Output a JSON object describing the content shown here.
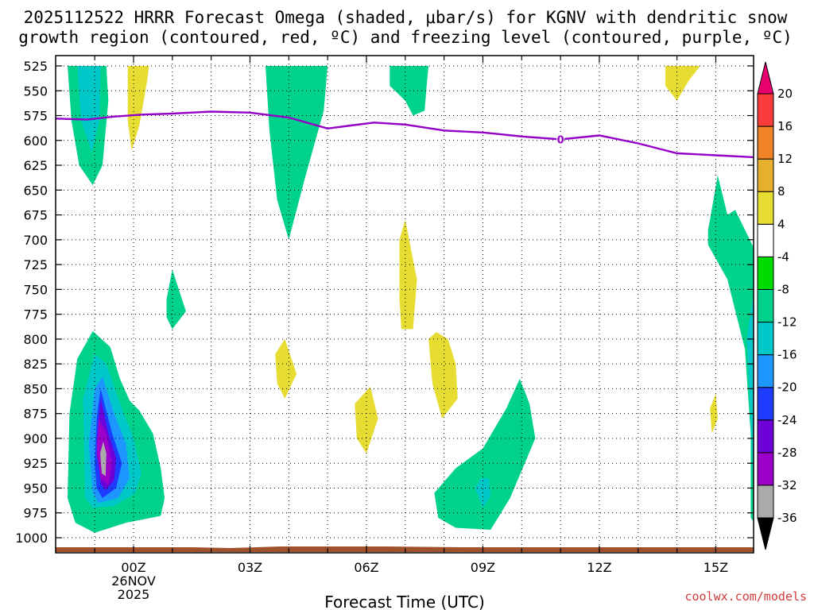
{
  "chart_data": {
    "type": "heatmap",
    "title_line1": "2025112522 HRRR Forecast Omega (shaded, μbar/s) for KGNV with dendritic snow",
    "title_line2": "growth region (contoured, red, ºC) and freezing level (contoured, purple, ºC)",
    "xlabel": "Forecast Time (UTC)",
    "credit": "coolwx.com/models",
    "x_range_hours": [
      -2.0,
      16.0
    ],
    "y_range_mb": [
      525,
      1000
    ],
    "y_ticks": [
      "525",
      "550",
      "575",
      "600",
      "625",
      "650",
      "675",
      "700",
      "725",
      "750",
      "775",
      "800",
      "825",
      "850",
      "875",
      "900",
      "925",
      "950",
      "975",
      "1000"
    ],
    "x_ticks": [
      {
        "hour": 0,
        "label": "00Z",
        "sub1": "26NOV",
        "sub2": "2025"
      },
      {
        "hour": 3,
        "label": "03Z"
      },
      {
        "hour": 6,
        "label": "06Z"
      },
      {
        "hour": 9,
        "label": "09Z"
      },
      {
        "hour": 12,
        "label": "12Z"
      },
      {
        "hour": 15,
        "label": "15Z"
      }
    ],
    "colorbar": {
      "bounds": [
        -36,
        -32,
        -28,
        -24,
        -20,
        -16,
        -12,
        -8,
        -4,
        4,
        8,
        12,
        16,
        20
      ],
      "labels": [
        "20",
        "16",
        "12",
        "8",
        "4",
        "-4",
        "-8",
        "-12",
        "-16",
        "-20",
        "-24",
        "-28",
        "-32",
        "-36"
      ],
      "below_color": "#000000",
      "above_color": "#e8006e",
      "colors": [
        "#aaaaaa",
        "#9c00c8",
        "#6e00d8",
        "#1e3cff",
        "#1e96ff",
        "#00c8c8",
        "#00d28c",
        "#00dc00",
        "#ffffff",
        "#e6dc32",
        "#e6af2d",
        "#f08228",
        "#fa3c3c"
      ]
    },
    "freezing_level": {
      "label": "0",
      "label_hour": 11.0,
      "points": [
        [
          -2.0,
          578
        ],
        [
          -1.2,
          579
        ],
        [
          -0.5,
          576
        ],
        [
          0.2,
          574
        ],
        [
          1.0,
          573
        ],
        [
          2.0,
          571
        ],
        [
          3.0,
          572
        ],
        [
          4.0,
          577
        ],
        [
          5.0,
          588
        ],
        [
          5.6,
          585
        ],
        [
          6.2,
          582
        ],
        [
          7.0,
          584
        ],
        [
          8.0,
          590
        ],
        [
          9.0,
          592
        ],
        [
          10.0,
          596
        ],
        [
          11.0,
          599
        ],
        [
          12.0,
          595
        ],
        [
          13.0,
          603
        ],
        [
          14.0,
          613
        ],
        [
          15.0,
          615
        ],
        [
          16.0,
          617
        ]
      ]
    },
    "omega_regions": [
      {
        "value": -10,
        "points": [
          [
            -1.7,
            525
          ],
          [
            -1.6,
            580
          ],
          [
            -1.4,
            625
          ],
          [
            -1.05,
            645
          ],
          [
            -0.8,
            625
          ],
          [
            -0.65,
            560
          ],
          [
            -0.7,
            525
          ]
        ]
      },
      {
        "value": -14,
        "points": [
          [
            -1.45,
            525
          ],
          [
            -1.35,
            580
          ],
          [
            -1.08,
            612
          ],
          [
            -0.88,
            580
          ],
          [
            -0.85,
            525
          ]
        ]
      },
      {
        "value": 6,
        "points": [
          [
            -0.15,
            525
          ],
          [
            -0.15,
            580
          ],
          [
            -0.05,
            610
          ],
          [
            0.15,
            585
          ],
          [
            0.35,
            540
          ],
          [
            0.4,
            525
          ]
        ]
      },
      {
        "value": -10,
        "points": [
          [
            3.4,
            525
          ],
          [
            3.5,
            590
          ],
          [
            3.7,
            660
          ],
          [
            4.0,
            700
          ],
          [
            4.4,
            640
          ],
          [
            4.9,
            570
          ],
          [
            5.0,
            525
          ]
        ]
      },
      {
        "value": -12,
        "points": [
          [
            3.72,
            525
          ],
          [
            3.72,
            600
          ],
          [
            4.0,
            638
          ],
          [
            4.25,
            590
          ],
          [
            4.25,
            525
          ]
        ]
      },
      {
        "value": -10,
        "points": [
          [
            7.6,
            525
          ],
          [
            7.55,
            545
          ],
          [
            7.5,
            570
          ],
          [
            7.2,
            575
          ],
          [
            7.0,
            560
          ],
          [
            6.6,
            545
          ],
          [
            6.6,
            525
          ]
        ]
      },
      {
        "value": 6,
        "points": [
          [
            13.7,
            525
          ],
          [
            13.7,
            545
          ],
          [
            14.0,
            560
          ],
          [
            14.3,
            540
          ],
          [
            14.6,
            525
          ]
        ]
      },
      {
        "value": 6,
        "points": [
          [
            6.85,
            700
          ],
          [
            6.85,
            760
          ],
          [
            6.9,
            790
          ],
          [
            7.2,
            790
          ],
          [
            7.3,
            740
          ],
          [
            7.0,
            680
          ]
        ]
      },
      {
        "value": -10,
        "points": [
          [
            0.85,
            760
          ],
          [
            0.85,
            778
          ],
          [
            1.0,
            790
          ],
          [
            1.35,
            772
          ],
          [
            1.0,
            730
          ]
        ]
      },
      {
        "value": 6,
        "points": [
          [
            3.65,
            815
          ],
          [
            3.7,
            845
          ],
          [
            3.9,
            860
          ],
          [
            4.2,
            835
          ],
          [
            3.9,
            800
          ]
        ]
      },
      {
        "value": 6,
        "points": [
          [
            5.7,
            865
          ],
          [
            5.75,
            900
          ],
          [
            6.0,
            915
          ],
          [
            6.3,
            880
          ],
          [
            6.1,
            848
          ]
        ]
      },
      {
        "value": 6,
        "points": [
          [
            7.6,
            800
          ],
          [
            7.7,
            845
          ],
          [
            7.95,
            880
          ],
          [
            8.35,
            860
          ],
          [
            8.3,
            825
          ],
          [
            8.1,
            800
          ],
          [
            7.8,
            793
          ]
        ]
      },
      {
        "value": -10,
        "points": [
          [
            14.8,
            690
          ],
          [
            14.8,
            705
          ],
          [
            15.3,
            740
          ],
          [
            15.75,
            810
          ],
          [
            15.9,
            895
          ],
          [
            15.9,
            980
          ],
          [
            16.0,
            985
          ],
          [
            16.0,
            710
          ],
          [
            15.5,
            670
          ],
          [
            15.3,
            675
          ],
          [
            15.05,
            635
          ],
          [
            14.85,
            680
          ]
        ]
      },
      {
        "value": -14,
        "points": [
          [
            15.95,
            760
          ],
          [
            15.8,
            800
          ],
          [
            15.9,
            880
          ],
          [
            15.95,
            935
          ],
          [
            16.0,
            950
          ],
          [
            16.0,
            760
          ]
        ]
      },
      {
        "value": 6,
        "points": [
          [
            14.85,
            870
          ],
          [
            14.9,
            895
          ],
          [
            15.05,
            880
          ],
          [
            15.0,
            855
          ]
        ]
      },
      {
        "value": -10,
        "points": [
          [
            7.75,
            955
          ],
          [
            7.85,
            980
          ],
          [
            8.3,
            990
          ],
          [
            9.2,
            992
          ],
          [
            9.7,
            960
          ],
          [
            10.35,
            900
          ],
          [
            10.2,
            865
          ],
          [
            9.95,
            840
          ],
          [
            9.6,
            870
          ],
          [
            9.0,
            910
          ],
          [
            8.3,
            930
          ]
        ]
      },
      {
        "value": -14,
        "points": [
          [
            8.8,
            950
          ],
          [
            9.0,
            970
          ],
          [
            9.2,
            958
          ],
          [
            9.15,
            940
          ],
          [
            8.95,
            940
          ]
        ]
      },
      {
        "value": -10,
        "points": [
          [
            -1.7,
            960
          ],
          [
            -1.5,
            985
          ],
          [
            -1.0,
            995
          ],
          [
            -0.2,
            985
          ],
          [
            0.7,
            978
          ],
          [
            0.8,
            960
          ],
          [
            0.7,
            930
          ],
          [
            0.5,
            895
          ],
          [
            0.15,
            872
          ],
          [
            -0.1,
            862
          ],
          [
            -0.35,
            840
          ],
          [
            -0.6,
            808
          ],
          [
            -1.05,
            792
          ],
          [
            -1.45,
            820
          ],
          [
            -1.65,
            875
          ]
        ]
      },
      {
        "value": -14,
        "points": [
          [
            -1.25,
            960
          ],
          [
            -1.05,
            970
          ],
          [
            -0.5,
            968
          ],
          [
            0.05,
            955
          ],
          [
            0.2,
            935
          ],
          [
            0.0,
            900
          ],
          [
            -0.35,
            865
          ],
          [
            -0.7,
            825
          ],
          [
            -1.0,
            815
          ],
          [
            -1.3,
            860
          ]
        ]
      },
      {
        "value": -18,
        "points": [
          [
            -1.05,
            955
          ],
          [
            -0.9,
            965
          ],
          [
            -0.4,
            960
          ],
          [
            -0.1,
            940
          ],
          [
            -0.2,
            905
          ],
          [
            -0.5,
            875
          ],
          [
            -0.8,
            838
          ],
          [
            -1.0,
            850
          ],
          [
            -1.15,
            905
          ]
        ]
      },
      {
        "value": -22,
        "points": [
          [
            -0.95,
            950
          ],
          [
            -0.8,
            960
          ],
          [
            -0.45,
            950
          ],
          [
            -0.3,
            925
          ],
          [
            -0.55,
            895
          ],
          [
            -0.85,
            850
          ],
          [
            -0.95,
            880
          ],
          [
            -1.0,
            925
          ]
        ]
      },
      {
        "value": -26,
        "points": [
          [
            -0.85,
            945
          ],
          [
            -0.72,
            952
          ],
          [
            -0.5,
            942
          ],
          [
            -0.45,
            920
          ],
          [
            -0.65,
            895
          ],
          [
            -0.85,
            860
          ],
          [
            -0.95,
            905
          ]
        ]
      },
      {
        "value": -30,
        "points": [
          [
            -0.85,
            940
          ],
          [
            -0.65,
            947
          ],
          [
            -0.55,
            925
          ],
          [
            -0.7,
            895
          ],
          [
            -0.9,
            880
          ],
          [
            -0.95,
            915
          ]
        ]
      },
      {
        "value": -34,
        "points": [
          [
            -0.82,
            935
          ],
          [
            -0.72,
            938
          ],
          [
            -0.7,
            915
          ],
          [
            -0.78,
            903
          ],
          [
            -0.86,
            915
          ]
        ]
      }
    ],
    "terrain_color": "#a0522d"
  }
}
